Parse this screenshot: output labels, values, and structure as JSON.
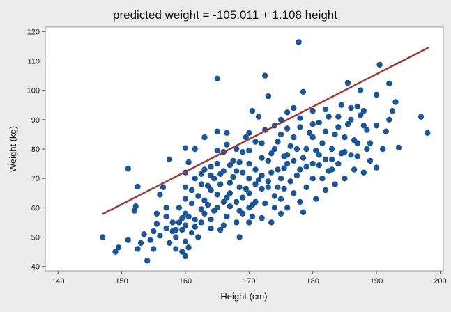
{
  "chart_data": {
    "type": "scatter",
    "title": "predicted weight = -105.011 + 1.108 height",
    "xlabel": "Height (cm)",
    "ylabel": "Weight (kg)",
    "xlim": [
      138,
      200.5
    ],
    "ylim": [
      38.5,
      121.5
    ],
    "xticks": [
      140,
      150,
      160,
      170,
      180,
      190,
      200
    ],
    "yticks": [
      40,
      50,
      60,
      70,
      80,
      90,
      100,
      110,
      120
    ],
    "grid": false,
    "legend": "none",
    "colors": {
      "points": "#1a5598",
      "fit_line": "#a83232",
      "plot_bg": "#ffffff",
      "outer_bg": "#ececec"
    },
    "fit_line": {
      "intercept": -105.011,
      "slope": 1.108,
      "x_range": [
        147,
        198.2
      ]
    },
    "points": [
      [
        147.0,
        50.0
      ],
      [
        149.0,
        45.0
      ],
      [
        149.5,
        46.5
      ],
      [
        151.0,
        73.3
      ],
      [
        151.0,
        49.0
      ],
      [
        152.0,
        59.0
      ],
      [
        152.2,
        60.5
      ],
      [
        152.5,
        67.2
      ],
      [
        153.0,
        48.0
      ],
      [
        154.0,
        42.0
      ],
      [
        154.5,
        49.0
      ],
      [
        155.0,
        46.0
      ],
      [
        155.5,
        54.5
      ],
      [
        155.5,
        58.0
      ],
      [
        156.0,
        64.5
      ],
      [
        156.5,
        67.0
      ],
      [
        157.0,
        60.0
      ],
      [
        157.0,
        57.0
      ],
      [
        157.5,
        48.0
      ],
      [
        157.5,
        76.5
      ],
      [
        158.0,
        52.0
      ],
      [
        158.0,
        55.0
      ],
      [
        158.5,
        46.0
      ],
      [
        158.5,
        50.0
      ],
      [
        159.0,
        55.0
      ],
      [
        159.0,
        60.0
      ],
      [
        159.5,
        45.0
      ],
      [
        159.5,
        52.5
      ],
      [
        160.0,
        43.5
      ],
      [
        160.0,
        48.5
      ],
      [
        160.0,
        54.0
      ],
      [
        160.0,
        58.0
      ],
      [
        160.0,
        63.0
      ],
      [
        160.0,
        72.0
      ],
      [
        160.0,
        80.3
      ],
      [
        160.5,
        75.5
      ],
      [
        160.5,
        57.0
      ],
      [
        161.0,
        66.0
      ],
      [
        161.0,
        51.5
      ],
      [
        161.5,
        80.0
      ],
      [
        161.5,
        56.0
      ],
      [
        162.0,
        64.0
      ],
      [
        162.5,
        55.0
      ],
      [
        162.5,
        68.0
      ],
      [
        163.0,
        58.0
      ],
      [
        163.0,
        73.0
      ],
      [
        163.0,
        84.0
      ],
      [
        163.5,
        61.0
      ],
      [
        164.0,
        56.0
      ],
      [
        164.0,
        66.0
      ],
      [
        164.0,
        71.0
      ],
      [
        165.0,
        104.0
      ],
      [
        165.0,
        60.0
      ],
      [
        165.0,
        75.0
      ],
      [
        165.0,
        86.0
      ],
      [
        165.5,
        52.5
      ],
      [
        165.5,
        68.0
      ],
      [
        166.0,
        62.0
      ],
      [
        166.0,
        79.0
      ],
      [
        166.5,
        57.0
      ],
      [
        166.5,
        85.5
      ],
      [
        167.0,
        65.0
      ],
      [
        167.0,
        60.5
      ],
      [
        167.5,
        70.5
      ],
      [
        168.0,
        55.0
      ],
      [
        168.0,
        80.0
      ],
      [
        168.0,
        62.0
      ],
      [
        168.5,
        67.0
      ],
      [
        168.5,
        50.0
      ],
      [
        169.0,
        58.0
      ],
      [
        169.0,
        72.0
      ],
      [
        169.5,
        84.0
      ],
      [
        170.0,
        60.0
      ],
      [
        170.0,
        65.0
      ],
      [
        170.0,
        70.0
      ],
      [
        170.0,
        75.0
      ],
      [
        170.0,
        85.5
      ],
      [
        170.5,
        57.0
      ],
      [
        170.5,
        93.0
      ],
      [
        171.0,
        62.0
      ],
      [
        171.0,
        68.0
      ],
      [
        171.5,
        91.0
      ],
      [
        172.0,
        56.5
      ],
      [
        172.0,
        77.0
      ],
      [
        172.0,
        82.0
      ],
      [
        172.5,
        105.0
      ],
      [
        172.5,
        61.5
      ],
      [
        173.0,
        67.0
      ],
      [
        173.0,
        98.0
      ],
      [
        173.5,
        72.0
      ],
      [
        173.5,
        55.0
      ],
      [
        174.0,
        60.0
      ],
      [
        174.0,
        80.0
      ],
      [
        174.5,
        67.0
      ],
      [
        175.0,
        58.0
      ],
      [
        175.0,
        63.0
      ],
      [
        175.0,
        70.0
      ],
      [
        175.0,
        85.0
      ],
      [
        175.0,
        90.0
      ],
      [
        175.5,
        66.5
      ],
      [
        176.0,
        60.0
      ],
      [
        176.0,
        75.0
      ],
      [
        176.0,
        78.0
      ],
      [
        176.5,
        69.0
      ],
      [
        177.0,
        65.0
      ],
      [
        177.0,
        84.0
      ],
      [
        177.0,
        94.0
      ],
      [
        177.5,
        80.0
      ],
      [
        177.8,
        116.4
      ],
      [
        178.0,
        62.0
      ],
      [
        178.0,
        73.0
      ],
      [
        178.0,
        87.5
      ],
      [
        178.5,
        99.5
      ],
      [
        178.5,
        58.5
      ],
      [
        179.0,
        80.0
      ],
      [
        179.0,
        67.0
      ],
      [
        180.0,
        70.0
      ],
      [
        180.0,
        75.0
      ],
      [
        180.0,
        84.0
      ],
      [
        180.0,
        93.0
      ],
      [
        180.5,
        63.0
      ],
      [
        181.0,
        78.0
      ],
      [
        181.0,
        89.0
      ],
      [
        181.5,
        70.0
      ],
      [
        182.0,
        66.0
      ],
      [
        182.0,
        76.5
      ],
      [
        182.0,
        86.0
      ],
      [
        182.5,
        91.0
      ],
      [
        183.0,
        73.0
      ],
      [
        183.0,
        80.0
      ],
      [
        183.5,
        68.0
      ],
      [
        184.0,
        75.0
      ],
      [
        184.0,
        87.5
      ],
      [
        184.5,
        95.0
      ],
      [
        185.0,
        70.0
      ],
      [
        185.0,
        84.0
      ],
      [
        185.5,
        102.5
      ],
      [
        186.0,
        78.0
      ],
      [
        186.0,
        90.0
      ],
      [
        186.5,
        73.0
      ],
      [
        187.0,
        94.5
      ],
      [
        187.0,
        82.0
      ],
      [
        187.5,
        100.0
      ],
      [
        188.0,
        72.0
      ],
      [
        188.0,
        88.0
      ],
      [
        188.5,
        80.0
      ],
      [
        189.0,
        82.0
      ],
      [
        190.0,
        73.7
      ],
      [
        190.0,
        88.0
      ],
      [
        190.0,
        98.5
      ],
      [
        190.5,
        108.7
      ],
      [
        191.5,
        86.0
      ],
      [
        192.0,
        90.0
      ],
      [
        192.0,
        102.3
      ],
      [
        192.5,
        93.0
      ],
      [
        193.0,
        96.0
      ],
      [
        193.5,
        80.5
      ],
      [
        197.0,
        91.0
      ],
      [
        198.0,
        85.5
      ],
      [
        158.5,
        52.5
      ],
      [
        160.5,
        46.5
      ],
      [
        161.5,
        53.5
      ],
      [
        162.0,
        50.0
      ],
      [
        163.0,
        62.5
      ],
      [
        164.5,
        59.0
      ],
      [
        165.0,
        64.5
      ],
      [
        166.0,
        54.0
      ],
      [
        167.0,
        68.5
      ],
      [
        168.0,
        72.5
      ],
      [
        169.0,
        63.5
      ],
      [
        170.0,
        55.0
      ],
      [
        171.0,
        73.0
      ],
      [
        172.0,
        66.5
      ],
      [
        173.0,
        76.0
      ],
      [
        174.0,
        64.0
      ],
      [
        175.5,
        73.5
      ],
      [
        176.5,
        81.0
      ],
      [
        177.5,
        71.0
      ],
      [
        178.5,
        77.0
      ],
      [
        179.5,
        85.5
      ],
      [
        180.5,
        79.5
      ],
      [
        181.5,
        82.0
      ],
      [
        182.5,
        72.5
      ],
      [
        183.5,
        85.0
      ],
      [
        184.5,
        78.5
      ],
      [
        185.5,
        88.5
      ],
      [
        186.5,
        83.0
      ],
      [
        187.5,
        91.5
      ],
      [
        188.5,
        86.5
      ],
      [
        176.0,
        87.0
      ],
      [
        174.5,
        82.5
      ],
      [
        173.5,
        78.5
      ],
      [
        171.5,
        69.5
      ],
      [
        170.5,
        61.0
      ],
      [
        169.5,
        66.5
      ],
      [
        168.5,
        59.0
      ],
      [
        166.5,
        63.5
      ],
      [
        165.5,
        71.5
      ],
      [
        164.0,
        53.0
      ],
      [
        162.5,
        59.5
      ],
      [
        161.0,
        61.5
      ],
      [
        159.5,
        56.5
      ],
      [
        157.0,
        53.0
      ],
      [
        156.0,
        50.5
      ],
      [
        155.0,
        52.0
      ],
      [
        153.5,
        51.0
      ],
      [
        152.5,
        46.0
      ],
      [
        167.5,
        76.0
      ],
      [
        169.0,
        79.0
      ],
      [
        171.0,
        82.5
      ],
      [
        172.5,
        86.5
      ],
      [
        174.0,
        88.0
      ],
      [
        176.0,
        92.5
      ],
      [
        178.0,
        90.5
      ],
      [
        180.0,
        88.5
      ],
      [
        182.0,
        93.5
      ],
      [
        184.0,
        91.0
      ],
      [
        186.0,
        94.0
      ],
      [
        188.0,
        93.0
      ],
      [
        163.5,
        67.5
      ],
      [
        164.5,
        70.0
      ],
      [
        166.0,
        72.5
      ],
      [
        167.0,
        74.5
      ],
      [
        168.5,
        75.5
      ],
      [
        170.0,
        79.5
      ],
      [
        172.0,
        71.0
      ],
      [
        173.0,
        69.0
      ],
      [
        174.5,
        73.0
      ],
      [
        175.5,
        77.5
      ],
      [
        177.0,
        76.0
      ],
      [
        179.0,
        74.0
      ],
      [
        181.0,
        74.5
      ],
      [
        183.0,
        76.5
      ],
      [
        185.0,
        79.0
      ],
      [
        187.0,
        77.5
      ],
      [
        189.0,
        76.0
      ],
      [
        191.0,
        80.0
      ],
      [
        160.0,
        67.0
      ],
      [
        161.5,
        70.0
      ],
      [
        162.5,
        71.5
      ],
      [
        164.0,
        74.0
      ],
      [
        165.0,
        79.5
      ],
      [
        166.5,
        81.5
      ]
    ]
  }
}
